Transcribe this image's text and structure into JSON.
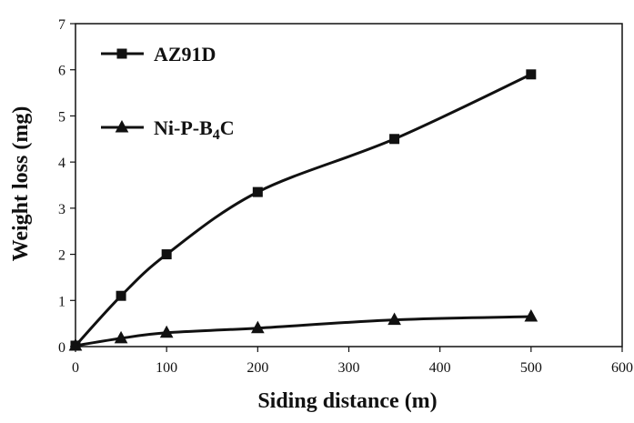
{
  "chart_data": {
    "type": "line",
    "title": "",
    "xlabel": "Siding distance (m)",
    "ylabel": "Weight loss (mg)",
    "xlim": [
      0,
      600
    ],
    "ylim": [
      0,
      7
    ],
    "x_ticks": [
      0,
      100,
      200,
      300,
      400,
      500,
      600
    ],
    "y_ticks": [
      0,
      1,
      2,
      3,
      4,
      5,
      6,
      7
    ],
    "grid": false,
    "legend_position": "top-left",
    "series": [
      {
        "name": "AZ91D",
        "marker": "square",
        "color": "#111111",
        "x": [
          0,
          50,
          100,
          200,
          350,
          500
        ],
        "y": [
          0.02,
          1.1,
          2.0,
          3.35,
          4.5,
          5.9
        ]
      },
      {
        "name": "Ni-P-B4C",
        "marker": "triangle",
        "color": "#111111",
        "x": [
          0,
          50,
          100,
          200,
          350,
          500
        ],
        "y": [
          0.02,
          0.18,
          0.3,
          0.4,
          0.58,
          0.65
        ]
      }
    ]
  }
}
